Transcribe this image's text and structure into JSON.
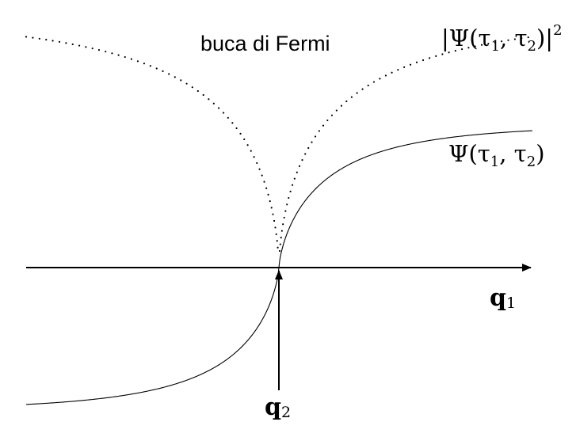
{
  "diagram": {
    "hole_label": "buca di Fermi",
    "density_label": {
      "psi": "Ψ",
      "args": "(τ",
      "sub1": "1",
      "comma": ", τ",
      "sub2": "2",
      "close": ")",
      "bars_open": "|",
      "bars_close": "|",
      "power": "2"
    },
    "wavefunction_label": {
      "psi": "Ψ",
      "args": "(τ",
      "sub1": "1",
      "comma": ", τ",
      "sub2": "2",
      "close": ")"
    },
    "axis_q1": {
      "base": "q",
      "sub": "1"
    },
    "axis_q2": {
      "base": "q",
      "sub": "2"
    },
    "colors": {
      "ink": "#000000",
      "background": "#ffffff"
    }
  }
}
